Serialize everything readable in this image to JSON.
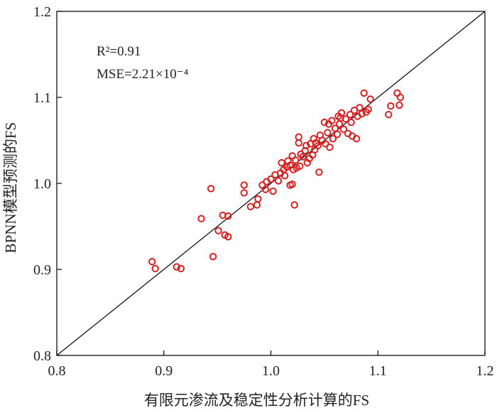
{
  "chart_data": {
    "type": "scatter",
    "xlabel": "有限元渗流及稳定性分析计算的FS",
    "ylabel": "BPNN模型预测的FS",
    "xlim": [
      0.8,
      1.2
    ],
    "ylim": [
      0.8,
      1.2
    ],
    "xticks": [
      "0.8",
      "0.9",
      "1.0",
      "1.1",
      "1.2"
    ],
    "yticks": [
      "0.8",
      "0.9",
      "1.0",
      "1.1",
      "1.2"
    ],
    "grid": false,
    "annotations": {
      "r2_label": "R²=0.91",
      "mse_label": "MSE=2.21×10⁻⁴"
    },
    "marker_color": "#d42020",
    "line_color": "#111111",
    "series": [
      {
        "points": [
          [
            0.889,
            0.909
          ],
          [
            0.892,
            0.901
          ],
          [
            0.912,
            0.903
          ],
          [
            0.916,
            0.901
          ],
          [
            0.935,
            0.959
          ],
          [
            0.944,
            0.994
          ],
          [
            0.946,
            0.915
          ],
          [
            0.951,
            0.945
          ],
          [
            0.955,
            0.963
          ],
          [
            0.957,
            0.94
          ],
          [
            0.96,
            0.938
          ],
          [
            0.96,
            0.962
          ],
          [
            0.975,
            0.998
          ],
          [
            0.975,
            0.989
          ],
          [
            0.981,
            0.973
          ],
          [
            0.987,
            0.975
          ],
          [
            0.988,
            0.982
          ],
          [
            0.992,
            0.998
          ],
          [
            0.995,
            0.993
          ],
          [
            0.996,
            1.002
          ],
          [
            1.0,
            1.005
          ],
          [
            1.002,
            0.991
          ],
          [
            1.004,
            1.01
          ],
          [
            1.007,
            1.003
          ],
          [
            1.009,
            1.012
          ],
          [
            1.01,
            1.024
          ],
          [
            1.012,
            1.016
          ],
          [
            1.013,
            1.009
          ],
          [
            1.015,
            1.019
          ],
          [
            1.016,
            1.026
          ],
          [
            1.018,
            1.021
          ],
          [
            1.018,
            0.998
          ],
          [
            1.02,
            1.032
          ],
          [
            1.02,
            0.999
          ],
          [
            1.021,
            1.016
          ],
          [
            1.022,
            0.975
          ],
          [
            1.023,
            1.027
          ],
          [
            1.024,
            1.018
          ],
          [
            1.026,
            1.047
          ],
          [
            1.026,
            1.054
          ],
          [
            1.027,
            1.02
          ],
          [
            1.028,
            1.034
          ],
          [
            1.03,
            1.031
          ],
          [
            1.032,
            1.038
          ],
          [
            1.033,
            1.044
          ],
          [
            1.034,
            1.024
          ],
          [
            1.036,
            1.029
          ],
          [
            1.037,
            1.046
          ],
          [
            1.039,
            1.033
          ],
          [
            1.04,
            1.052
          ],
          [
            1.041,
            1.039
          ],
          [
            1.042,
            1.047
          ],
          [
            1.044,
            1.044
          ],
          [
            1.045,
            1.013
          ],
          [
            1.046,
            1.056
          ],
          [
            1.048,
            1.05
          ],
          [
            1.05,
            1.071
          ],
          [
            1.051,
            1.046
          ],
          [
            1.053,
            1.059
          ],
          [
            1.054,
            1.069
          ],
          [
            1.055,
            1.042
          ],
          [
            1.057,
            1.073
          ],
          [
            1.058,
            1.052
          ],
          [
            1.06,
            1.064
          ],
          [
            1.062,
            1.057
          ],
          [
            1.063,
            1.078
          ],
          [
            1.064,
            1.069
          ],
          [
            1.065,
            1.076
          ],
          [
            1.066,
            1.082
          ],
          [
            1.068,
            1.063
          ],
          [
            1.07,
            1.075
          ],
          [
            1.072,
            1.058
          ],
          [
            1.074,
            1.08
          ],
          [
            1.075,
            1.071
          ],
          [
            1.076,
            1.055
          ],
          [
            1.078,
            1.085
          ],
          [
            1.08,
            1.052
          ],
          [
            1.081,
            1.078
          ],
          [
            1.083,
            1.088
          ],
          [
            1.085,
            1.081
          ],
          [
            1.087,
            1.105
          ],
          [
            1.089,
            1.083
          ],
          [
            1.091,
            1.086
          ],
          [
            1.093,
            1.098
          ],
          [
            1.11,
            1.08
          ],
          [
            1.112,
            1.09
          ],
          [
            1.118,
            1.105
          ],
          [
            1.12,
            1.091
          ],
          [
            1.121,
            1.1
          ]
        ]
      }
    ]
  }
}
